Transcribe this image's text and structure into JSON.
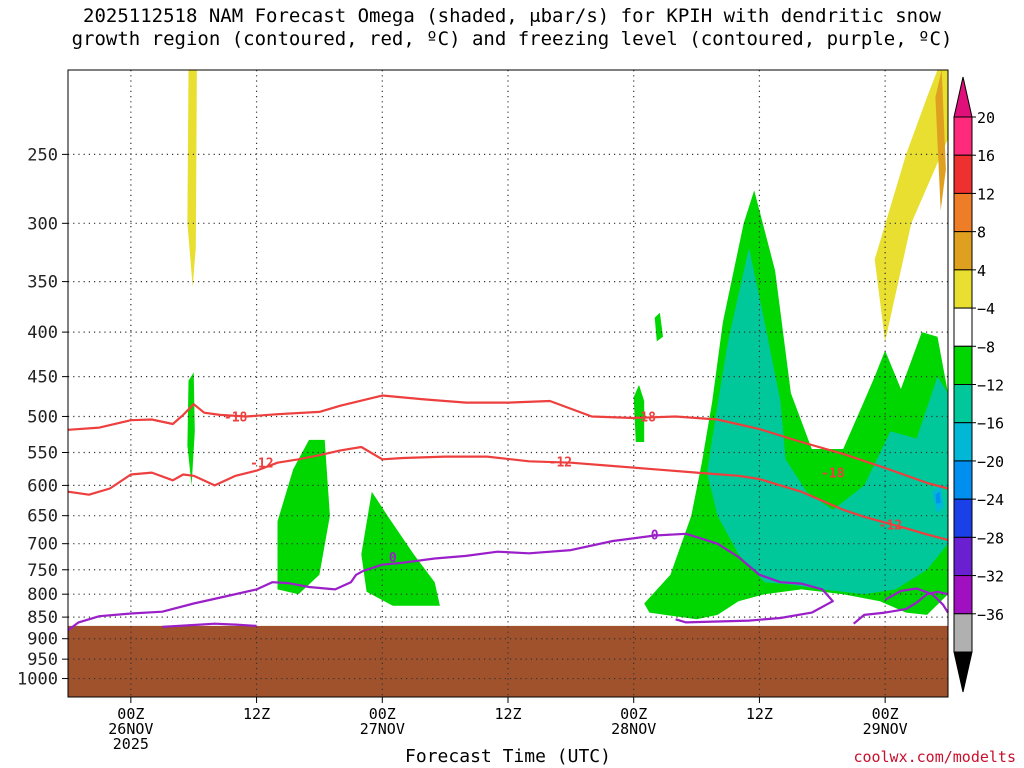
{
  "title": {
    "line1": "2025112518 NAM Forecast Omega (shaded, μbar/s) for KPIH with dendritic snow",
    "line2": "growth region (contoured, red, ºC) and freezing level (contoured, purple, ºC)"
  },
  "credit": "coolwx.com/modelts",
  "chart_data": {
    "type": "heatmap",
    "title": "2025112518 NAM Forecast Omega (shaded, μbar/s) for KPIH with dendritic snow growth region (contoured, red, ºC) and freezing level (contoured, purple, ºC)",
    "xlabel": "Forecast Time (UTC)",
    "ylabel": "",
    "x_unit": "hours since 2025-11-25 18Z",
    "xlim": [
      0,
      84
    ],
    "ylim_hpa": [
      1050,
      200
    ],
    "y_ticks": [
      250,
      300,
      350,
      400,
      450,
      500,
      550,
      600,
      650,
      700,
      750,
      800,
      850,
      900,
      950,
      1000
    ],
    "x_ticks": [
      {
        "hour": 6,
        "lines": [
          "00Z",
          "26NOV",
          "2025"
        ]
      },
      {
        "hour": 18,
        "lines": [
          "12Z"
        ]
      },
      {
        "hour": 30,
        "lines": [
          "00Z",
          "27NOV"
        ]
      },
      {
        "hour": 42,
        "lines": [
          "12Z"
        ]
      },
      {
        "hour": 54,
        "lines": [
          "00Z",
          "28NOV"
        ]
      },
      {
        "hour": 66,
        "lines": [
          "12Z"
        ]
      },
      {
        "hour": 78,
        "lines": [
          "00Z",
          "29NOV"
        ]
      }
    ],
    "grid": true,
    "ground_level_hpa": 870,
    "colorbar": {
      "labels": [
        "20",
        "16",
        "12",
        "8",
        "4",
        "−4",
        "−8",
        "−12",
        "−16",
        "−20",
        "−24",
        "−28",
        "−32",
        "−36"
      ],
      "colors": [
        "#ff2a7c",
        "#ee3030",
        "#ee7d28",
        "#dfa020",
        "#e8df30",
        "#ffffff",
        "#00d600",
        "#00c89a",
        "#00b7d6",
        "#008fee",
        "#1a40e8",
        "#6a1fd0",
        "#a010c0",
        "#b0b0b0"
      ],
      "top_arrow_color": "#e0107a",
      "bottom_arrow_color": "#000000"
    },
    "omega_regions": [
      {
        "value": 4,
        "color": "#e8df30",
        "points": [
          [
            11.5,
            200
          ],
          [
            12.3,
            200
          ],
          [
            12.2,
            320
          ],
          [
            11.9,
            355
          ],
          [
            11.4,
            300
          ]
        ]
      },
      {
        "value": 4,
        "color": "#e8df30",
        "points": [
          [
            77.0,
            330
          ],
          [
            80.0,
            250
          ],
          [
            82.0,
            215
          ],
          [
            83.0,
            200
          ],
          [
            84.0,
            200
          ],
          [
            84.0,
            240
          ],
          [
            80.5,
            300
          ],
          [
            78.0,
            410
          ]
        ]
      },
      {
        "value": 8,
        "color": "#dfa020",
        "points": [
          [
            82.8,
            215
          ],
          [
            83.4,
            200
          ],
          [
            83.8,
            260
          ],
          [
            83.3,
            290
          ]
        ]
      },
      {
        "value": -4,
        "color": "#00d600",
        "points": [
          [
            11.5,
            455
          ],
          [
            12.0,
            445
          ],
          [
            12.1,
            520
          ],
          [
            11.8,
            600
          ],
          [
            11.4,
            540
          ]
        ]
      },
      {
        "value": -4,
        "color": "#00d600",
        "points": [
          [
            20.0,
            660
          ],
          [
            21.5,
            575
          ],
          [
            23.0,
            532
          ],
          [
            24.5,
            532
          ],
          [
            25.0,
            650
          ],
          [
            24.0,
            760
          ],
          [
            22.0,
            800
          ],
          [
            20.0,
            790
          ]
        ]
      },
      {
        "value": -4,
        "color": "#00d600",
        "points": [
          [
            28.0,
            720
          ],
          [
            29.0,
            610
          ],
          [
            30.5,
            650
          ],
          [
            33.0,
            720
          ],
          [
            35.0,
            775
          ],
          [
            35.5,
            825
          ],
          [
            31.0,
            825
          ],
          [
            28.5,
            795
          ]
        ]
      },
      {
        "value": -4,
        "color": "#00d600",
        "points": [
          [
            54.0,
            475
          ],
          [
            54.5,
            460
          ],
          [
            55.0,
            480
          ],
          [
            55.0,
            535
          ],
          [
            54.2,
            535
          ]
        ]
      },
      {
        "value": -4,
        "color": "#00d600",
        "points": [
          [
            56.0,
            385
          ],
          [
            56.5,
            380
          ],
          [
            56.8,
            405
          ],
          [
            56.2,
            410
          ]
        ]
      },
      {
        "value": -4,
        "color": "#00d600",
        "points": [
          [
            55.0,
            820
          ],
          [
            57.5,
            760
          ],
          [
            59.5,
            650
          ],
          [
            60.5,
            565
          ],
          [
            61.5,
            480
          ],
          [
            62.5,
            390
          ],
          [
            64.5,
            300
          ],
          [
            65.5,
            275
          ],
          [
            67.5,
            340
          ],
          [
            69.0,
            470
          ],
          [
            71.0,
            545
          ],
          [
            74.0,
            545
          ],
          [
            76.0,
            480
          ],
          [
            77.0,
            450
          ],
          [
            78.0,
            420
          ],
          [
            79.5,
            465
          ],
          [
            81.5,
            400
          ],
          [
            83.0,
            405
          ],
          [
            84.0,
            470
          ],
          [
            84.0,
            800
          ],
          [
            82.0,
            845
          ],
          [
            80.0,
            840
          ],
          [
            77.5,
            815
          ],
          [
            74.0,
            800
          ],
          [
            70.0,
            790
          ],
          [
            66.5,
            800
          ],
          [
            64.0,
            815
          ],
          [
            62.0,
            845
          ],
          [
            60.0,
            855
          ],
          [
            57.0,
            845
          ],
          [
            55.5,
            840
          ]
        ]
      },
      {
        "value": -8,
        "color": "#00c89a",
        "points": [
          [
            61.0,
            580
          ],
          [
            62.0,
            485
          ],
          [
            63.0,
            410
          ],
          [
            65.0,
            320
          ],
          [
            66.5,
            390
          ],
          [
            68.0,
            480
          ],
          [
            68.5,
            560
          ],
          [
            70.5,
            610
          ],
          [
            73.0,
            640
          ],
          [
            76.0,
            600
          ],
          [
            78.5,
            520
          ],
          [
            81.0,
            530
          ],
          [
            83.0,
            450
          ],
          [
            84.0,
            470
          ],
          [
            84.0,
            700
          ],
          [
            82.0,
            750
          ],
          [
            79.0,
            790
          ],
          [
            76.0,
            800
          ],
          [
            72.0,
            790
          ],
          [
            69.0,
            780
          ],
          [
            66.5,
            775
          ],
          [
            64.0,
            720
          ],
          [
            62.0,
            650
          ]
        ]
      },
      {
        "value": -12,
        "color": "#00b7d6",
        "points": [
          [
            82.5,
            610
          ],
          [
            83.3,
            600
          ],
          [
            83.6,
            635
          ],
          [
            82.9,
            645
          ]
        ]
      },
      {
        "value": -16,
        "color": "#008fee",
        "points": [
          [
            82.8,
            615
          ],
          [
            83.2,
            610
          ],
          [
            83.3,
            628
          ],
          [
            82.9,
            630
          ]
        ]
      }
    ],
    "contours_dgz": [
      {
        "label": "-18",
        "color": "#ee3f3f",
        "label_at": [
          {
            "hour": 16.0,
            "hpa": 500
          },
          {
            "hour": 55.0,
            "hpa": 500
          },
          {
            "hour": 73.0,
            "hpa": 580
          }
        ],
        "points": [
          [
            0,
            518
          ],
          [
            3,
            515
          ],
          [
            6,
            505
          ],
          [
            8,
            504
          ],
          [
            10,
            510
          ],
          [
            11,
            498
          ],
          [
            12,
            484
          ],
          [
            13,
            495
          ],
          [
            14.5,
            498
          ],
          [
            17,
            500
          ],
          [
            20,
            497
          ],
          [
            24,
            494
          ],
          [
            26,
            486
          ],
          [
            30,
            473
          ],
          [
            34,
            478
          ],
          [
            38,
            482
          ],
          [
            42,
            482
          ],
          [
            46,
            480
          ],
          [
            50,
            500
          ],
          [
            54,
            502
          ],
          [
            58,
            500
          ],
          [
            62,
            504
          ],
          [
            66,
            517
          ],
          [
            70,
            535
          ],
          [
            74,
            552
          ],
          [
            78,
            573
          ],
          [
            82,
            596
          ],
          [
            84,
            605
          ]
        ]
      },
      {
        "label": "-12",
        "color": "#ee3f3f",
        "label_at": [
          {
            "hour": 18.5,
            "hpa": 565
          },
          {
            "hour": 47.0,
            "hpa": 563
          },
          {
            "hour": 78.5,
            "hpa": 665
          }
        ],
        "points": [
          [
            0,
            610
          ],
          [
            2,
            615
          ],
          [
            4,
            605
          ],
          [
            6,
            583
          ],
          [
            8,
            580
          ],
          [
            10,
            592
          ],
          [
            11,
            583
          ],
          [
            12,
            585
          ],
          [
            14,
            600
          ],
          [
            16,
            585
          ],
          [
            18,
            577
          ],
          [
            20,
            565
          ],
          [
            22,
            560
          ],
          [
            24,
            554
          ],
          [
            26,
            547
          ],
          [
            28,
            542
          ],
          [
            30,
            560
          ],
          [
            32,
            558
          ],
          [
            36,
            556
          ],
          [
            40,
            556
          ],
          [
            44,
            563
          ],
          [
            48,
            565
          ],
          [
            52,
            570
          ],
          [
            56,
            575
          ],
          [
            60,
            580
          ],
          [
            64,
            585
          ],
          [
            66,
            590
          ],
          [
            68,
            600
          ],
          [
            70,
            610
          ],
          [
            72,
            625
          ],
          [
            74,
            640
          ],
          [
            76,
            652
          ],
          [
            78,
            662
          ],
          [
            80,
            672
          ],
          [
            82,
            683
          ],
          [
            84,
            693
          ]
        ]
      }
    ],
    "contours_freezing": [
      {
        "label": "0",
        "color": "#9a1fc8",
        "label_at": [
          {
            "hour": 31.0,
            "hpa": 725
          },
          {
            "hour": 56.0,
            "hpa": 683
          }
        ],
        "points": [
          [
            0,
            880
          ],
          [
            1,
            862
          ],
          [
            3,
            848
          ],
          [
            6,
            842
          ],
          [
            9,
            838
          ],
          [
            12,
            820
          ],
          [
            15,
            805
          ],
          [
            18,
            790
          ],
          [
            19.5,
            775
          ],
          [
            21,
            777
          ],
          [
            23,
            785
          ],
          [
            25.5,
            790
          ],
          [
            27,
            775
          ],
          [
            27.5,
            760
          ],
          [
            28.2,
            752
          ],
          [
            30,
            740
          ],
          [
            32,
            736
          ],
          [
            35,
            728
          ],
          [
            38,
            723
          ],
          [
            41,
            715
          ],
          [
            44,
            718
          ],
          [
            48,
            712
          ],
          [
            52,
            695
          ],
          [
            56,
            685
          ],
          [
            59,
            682
          ],
          [
            62,
            700
          ],
          [
            64,
            725
          ],
          [
            66,
            760
          ],
          [
            68,
            775
          ],
          [
            70,
            778
          ],
          [
            72,
            790
          ],
          [
            73,
            815
          ],
          [
            71,
            840
          ],
          [
            68,
            852
          ],
          [
            65,
            858
          ],
          [
            62,
            860
          ],
          [
            59,
            862
          ],
          [
            58,
            855
          ]
        ]
      },
      {
        "label": "",
        "color": "#9a1fc8",
        "label_at": [],
        "points": [
          [
            9,
            872
          ],
          [
            12,
            868
          ],
          [
            14,
            865
          ],
          [
            16,
            867
          ],
          [
            18,
            870
          ]
        ]
      },
      {
        "label": "",
        "color": "#9a1fc8",
        "label_at": [],
        "points": [
          [
            75,
            865
          ],
          [
            76,
            845
          ],
          [
            78,
            840
          ],
          [
            80,
            832
          ],
          [
            81,
            818
          ],
          [
            82,
            800
          ],
          [
            83,
            795
          ],
          [
            84,
            800
          ]
        ]
      },
      {
        "label": "",
        "color": "#9a1fc8",
        "label_at": [],
        "points": [
          [
            78,
            812
          ],
          [
            79.5,
            793
          ],
          [
            81,
            788
          ],
          [
            82.5,
            800
          ],
          [
            83.5,
            822
          ],
          [
            84,
            840
          ]
        ]
      }
    ]
  }
}
